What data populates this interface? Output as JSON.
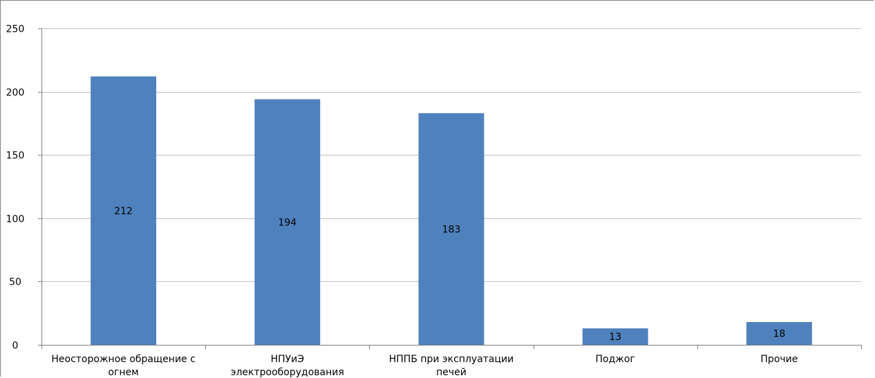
{
  "chart_data": {
    "type": "bar",
    "categories": [
      [
        "Неосторожное обращение с",
        "огнем"
      ],
      [
        "НПУиЭ",
        "электрооборудования"
      ],
      [
        "НППБ при эксплуатации",
        "печей"
      ],
      [
        "Поджог"
      ],
      [
        "Прочие"
      ]
    ],
    "values": [
      212,
      194,
      183,
      13,
      18
    ],
    "data_labels": [
      "212",
      "194",
      "183",
      "13",
      "18"
    ],
    "ylim": [
      0,
      250
    ],
    "yticks": [
      0,
      50,
      100,
      150,
      200,
      250
    ],
    "ytick_labels": [
      "0",
      "50",
      "100",
      "150",
      "200",
      "250"
    ],
    "title": "",
    "xlabel": "",
    "ylabel": "",
    "grid": true,
    "bar_color": "#4F81BD",
    "grid_color": "#BFBFBF",
    "axis_color": "#7F7F7F"
  }
}
